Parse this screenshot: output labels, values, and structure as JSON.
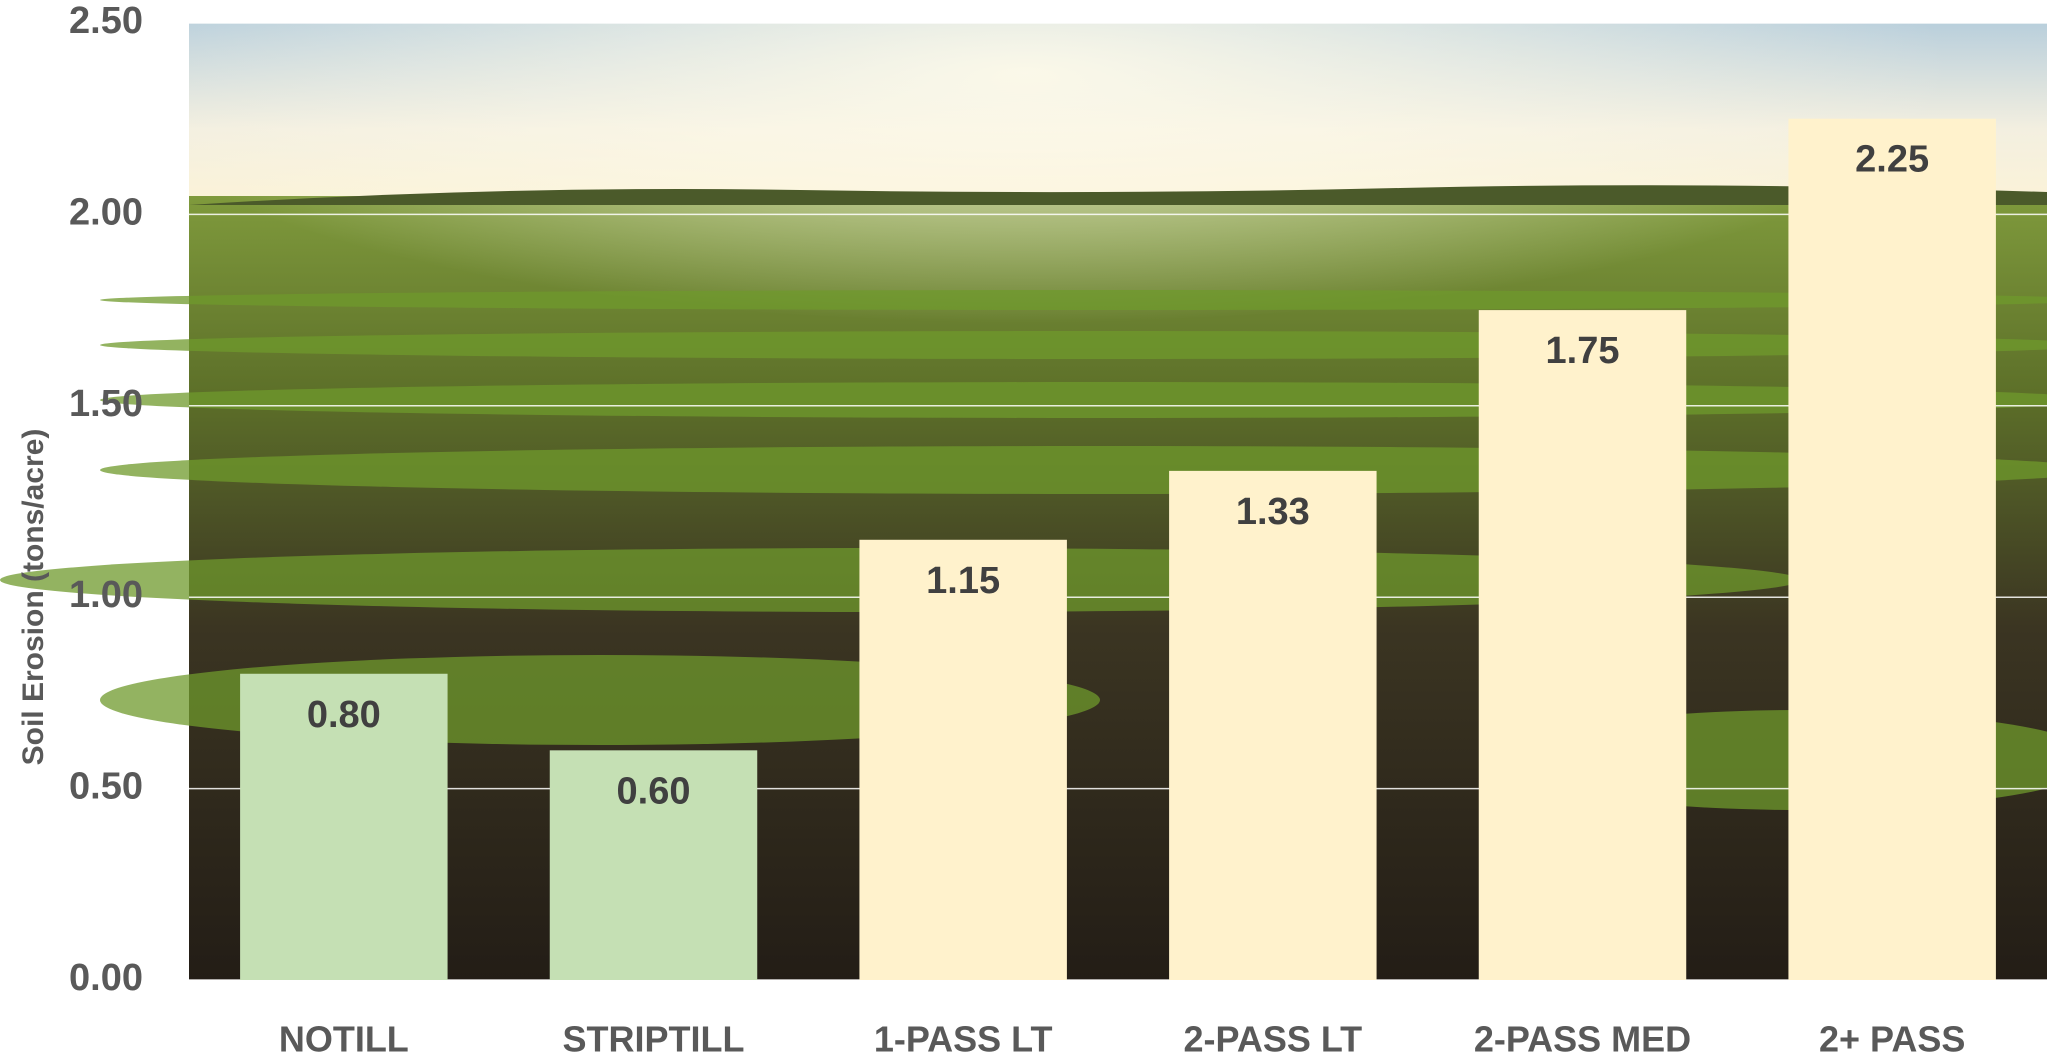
{
  "chart_data": {
    "type": "bar",
    "y_label": "Soil Erosion (tons/acre)",
    "categories": [
      "NOTILL",
      "STRIPTILL",
      "1-PASS LT",
      "2-PASS LT",
      "2-PASS MED",
      "2+ PASS"
    ],
    "values": [
      0.8,
      0.6,
      1.15,
      1.33,
      1.75,
      2.25
    ],
    "value_labels": [
      "0.80",
      "0.60",
      "1.15",
      "1.33",
      "1.75",
      "2.25"
    ],
    "colors": [
      "#c5e0b4",
      "#c5e0b4",
      "#fff2cc",
      "#fff2cc",
      "#fff2cc",
      "#fff2cc"
    ],
    "ylim": [
      0,
      2.5
    ],
    "yticks": [
      {
        "value": 0,
        "label": "0.00"
      },
      {
        "value": 0.5,
        "label": "0.50"
      },
      {
        "value": 1,
        "label": "1.00"
      },
      {
        "value": 1.5,
        "label": "1.50"
      },
      {
        "value": 2,
        "label": "2.00"
      },
      {
        "value": 2.5,
        "label": "2.50"
      }
    ],
    "grid": true
  }
}
